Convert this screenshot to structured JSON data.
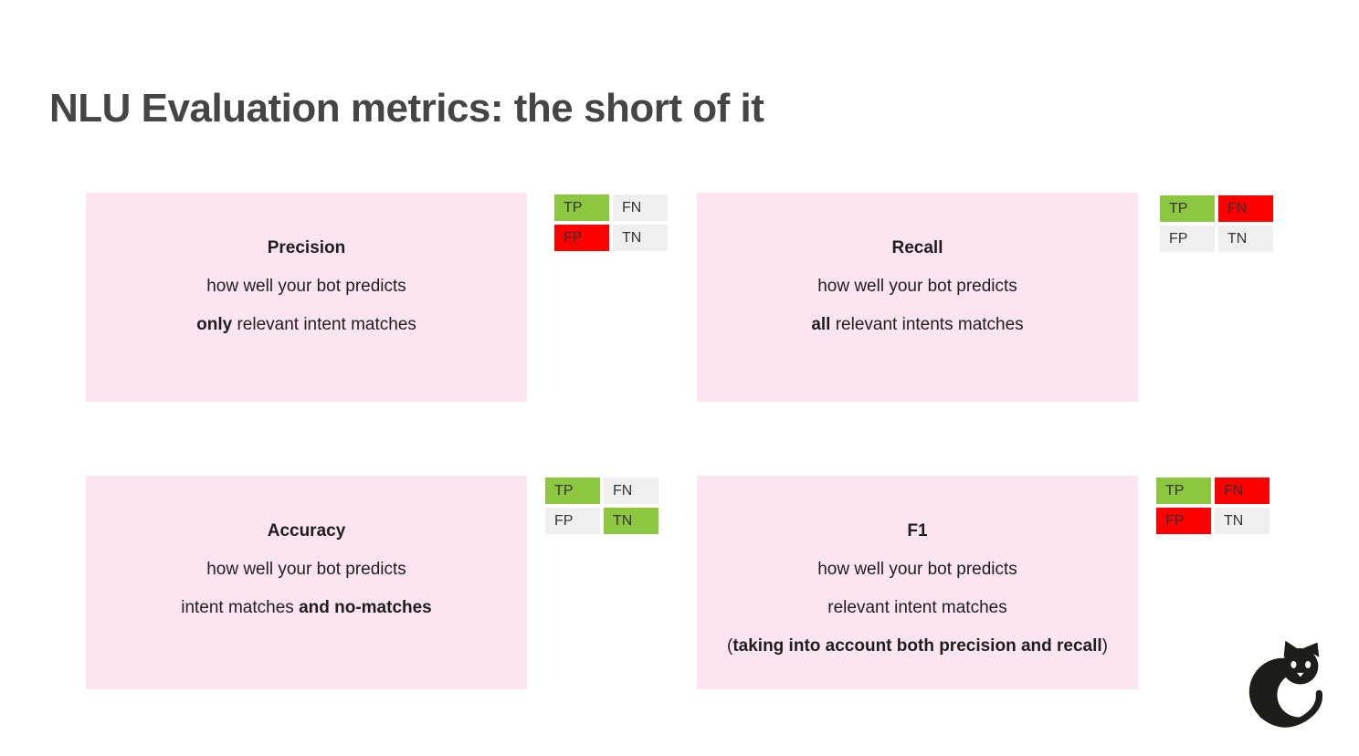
{
  "title": "NLU Evaluation metrics: the short of it",
  "logo_icon": "curled-cat-icon",
  "colors": {
    "pink": "#FCE4F0",
    "green": "#8DC63F",
    "red": "#FF0000",
    "gray": "#EFEFEF",
    "title_text": "#454545",
    "body_text": "#1E1E1E",
    "logo_black": "#1D1D1B"
  },
  "matrix_labels": [
    "TP",
    "FN",
    "FP",
    "TN"
  ],
  "cards": [
    {
      "id": "precision",
      "title": "Precision",
      "lines": [
        [
          {
            "text": "how well your bot predicts",
            "bold": false
          }
        ],
        [
          {
            "text": "only",
            "bold": true
          },
          {
            "text": " relevant intent matches",
            "bold": false
          }
        ]
      ],
      "matrix": [
        "green",
        "gray",
        "red",
        "gray"
      ]
    },
    {
      "id": "recall",
      "title": "Recall",
      "lines": [
        [
          {
            "text": "how well your bot predicts",
            "bold": false
          }
        ],
        [
          {
            "text": "all",
            "bold": true
          },
          {
            "text": " relevant intents matches",
            "bold": false
          }
        ]
      ],
      "matrix": [
        "green",
        "red",
        "gray",
        "gray"
      ]
    },
    {
      "id": "accuracy",
      "title": "Accuracy",
      "lines": [
        [
          {
            "text": "how well your bot predicts",
            "bold": false
          }
        ],
        [
          {
            "text": "intent matches ",
            "bold": false
          },
          {
            "text": "and no-matches",
            "bold": true
          }
        ]
      ],
      "matrix": [
        "green",
        "gray",
        "gray",
        "green"
      ]
    },
    {
      "id": "f1",
      "title": "F1",
      "lines": [
        [
          {
            "text": "how well your bot predicts",
            "bold": false
          }
        ],
        [
          {
            "text": "relevant intent matches",
            "bold": false
          }
        ],
        [
          {
            "text": "(",
            "bold": false
          },
          {
            "text": "taking into account both precision and recall",
            "bold": true
          },
          {
            "text": ")",
            "bold": false
          }
        ]
      ],
      "matrix": [
        "green",
        "red",
        "red",
        "gray"
      ]
    }
  ]
}
